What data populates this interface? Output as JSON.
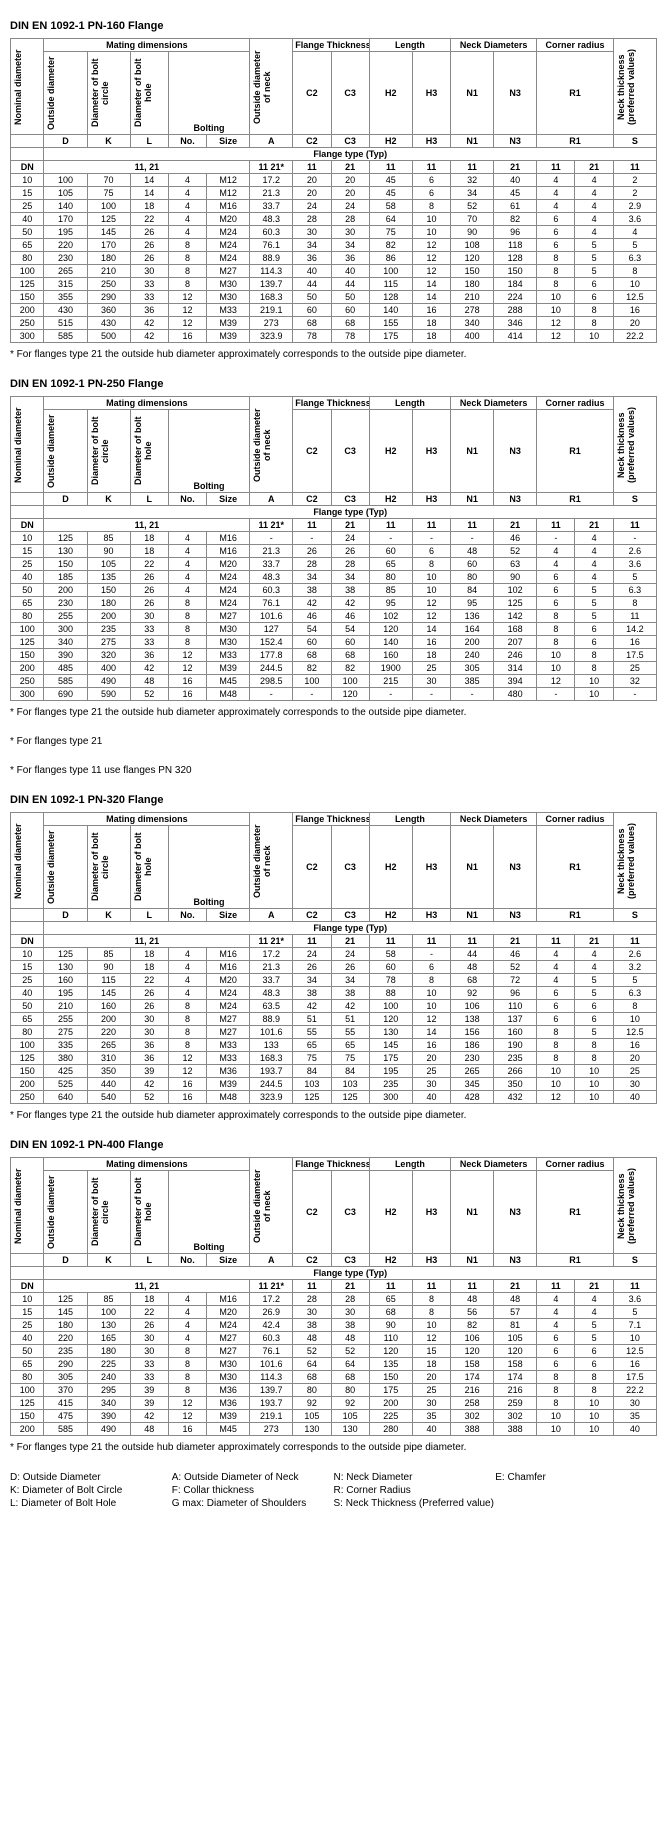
{
  "tables": [
    {
      "title": "DIN EN 1092-1 PN-160 Flange",
      "footnotes": [
        "* For flanges type 21 the outside hub diameter approximately corresponds to the outside pipe diameter."
      ],
      "rows": [
        [
          "10",
          "100",
          "70",
          "14",
          "4",
          "M12",
          "17.2",
          "20",
          "20",
          "45",
          "6",
          "32",
          "40",
          "4",
          "4",
          "2"
        ],
        [
          "15",
          "105",
          "75",
          "14",
          "4",
          "M12",
          "21.3",
          "20",
          "20",
          "45",
          "6",
          "34",
          "45",
          "4",
          "4",
          "2"
        ],
        [
          "25",
          "140",
          "100",
          "18",
          "4",
          "M16",
          "33.7",
          "24",
          "24",
          "58",
          "8",
          "52",
          "61",
          "4",
          "4",
          "2.9"
        ],
        [
          "40",
          "170",
          "125",
          "22",
          "4",
          "M20",
          "48.3",
          "28",
          "28",
          "64",
          "10",
          "70",
          "82",
          "6",
          "4",
          "3.6"
        ],
        [
          "50",
          "195",
          "145",
          "26",
          "4",
          "M24",
          "60.3",
          "30",
          "30",
          "75",
          "10",
          "90",
          "96",
          "6",
          "4",
          "4"
        ],
        [
          "65",
          "220",
          "170",
          "26",
          "8",
          "M24",
          "76.1",
          "34",
          "34",
          "82",
          "12",
          "108",
          "118",
          "6",
          "5",
          "5"
        ],
        [
          "80",
          "230",
          "180",
          "26",
          "8",
          "M24",
          "88.9",
          "36",
          "36",
          "86",
          "12",
          "120",
          "128",
          "8",
          "5",
          "6.3"
        ],
        [
          "100",
          "265",
          "210",
          "30",
          "8",
          "M27",
          "114.3",
          "40",
          "40",
          "100",
          "12",
          "150",
          "150",
          "8",
          "5",
          "8"
        ],
        [
          "125",
          "315",
          "250",
          "33",
          "8",
          "M30",
          "139.7",
          "44",
          "44",
          "115",
          "14",
          "180",
          "184",
          "8",
          "6",
          "10"
        ],
        [
          "150",
          "355",
          "290",
          "33",
          "12",
          "M30",
          "168.3",
          "50",
          "50",
          "128",
          "14",
          "210",
          "224",
          "10",
          "6",
          "12.5"
        ],
        [
          "200",
          "430",
          "360",
          "36",
          "12",
          "M33",
          "219.1",
          "60",
          "60",
          "140",
          "16",
          "278",
          "288",
          "10",
          "8",
          "16"
        ],
        [
          "250",
          "515",
          "430",
          "42",
          "12",
          "M39",
          "273",
          "68",
          "68",
          "155",
          "18",
          "340",
          "346",
          "12",
          "8",
          "20"
        ],
        [
          "300",
          "585",
          "500",
          "42",
          "16",
          "M39",
          "323.9",
          "78",
          "78",
          "175",
          "18",
          "400",
          "414",
          "12",
          "10",
          "22.2"
        ]
      ]
    },
    {
      "title": "DIN EN 1092-1 PN-250 Flange",
      "footnotes": [
        "* For flanges type 21 the outside hub diameter approximately corresponds to the outside pipe diameter.",
        "* For flanges type 21",
        "* For flanges type 11 use flanges PN 320"
      ],
      "rows": [
        [
          "10",
          "125",
          "85",
          "18",
          "4",
          "M16",
          "-",
          "-",
          "24",
          "-",
          "-",
          "-",
          "46",
          "-",
          "4",
          "-"
        ],
        [
          "15",
          "130",
          "90",
          "18",
          "4",
          "M16",
          "21.3",
          "26",
          "26",
          "60",
          "6",
          "48",
          "52",
          "4",
          "4",
          "2.6"
        ],
        [
          "25",
          "150",
          "105",
          "22",
          "4",
          "M20",
          "33.7",
          "28",
          "28",
          "65",
          "8",
          "60",
          "63",
          "4",
          "4",
          "3.6"
        ],
        [
          "40",
          "185",
          "135",
          "26",
          "4",
          "M24",
          "48.3",
          "34",
          "34",
          "80",
          "10",
          "80",
          "90",
          "6",
          "4",
          "5"
        ],
        [
          "50",
          "200",
          "150",
          "26",
          "4",
          "M24",
          "60.3",
          "38",
          "38",
          "85",
          "10",
          "84",
          "102",
          "6",
          "5",
          "6.3"
        ],
        [
          "65",
          "230",
          "180",
          "26",
          "8",
          "M24",
          "76.1",
          "42",
          "42",
          "95",
          "12",
          "95",
          "125",
          "6",
          "5",
          "8"
        ],
        [
          "80",
          "255",
          "200",
          "30",
          "8",
          "M27",
          "101.6",
          "46",
          "46",
          "102",
          "12",
          "136",
          "142",
          "8",
          "5",
          "11"
        ],
        [
          "100",
          "300",
          "235",
          "33",
          "8",
          "M30",
          "127",
          "54",
          "54",
          "120",
          "14",
          "164",
          "168",
          "8",
          "6",
          "14.2"
        ],
        [
          "125",
          "340",
          "275",
          "33",
          "8",
          "M30",
          "152.4",
          "60",
          "60",
          "140",
          "16",
          "200",
          "207",
          "8",
          "6",
          "16"
        ],
        [
          "150",
          "390",
          "320",
          "36",
          "12",
          "M33",
          "177.8",
          "68",
          "68",
          "160",
          "18",
          "240",
          "246",
          "10",
          "8",
          "17.5"
        ],
        [
          "200",
          "485",
          "400",
          "42",
          "12",
          "M39",
          "244.5",
          "82",
          "82",
          "1900",
          "25",
          "305",
          "314",
          "10",
          "8",
          "25"
        ],
        [
          "250",
          "585",
          "490",
          "48",
          "16",
          "M45",
          "298.5",
          "100",
          "100",
          "215",
          "30",
          "385",
          "394",
          "12",
          "10",
          "32"
        ],
        [
          "300",
          "690",
          "590",
          "52",
          "16",
          "M48",
          "-",
          "-",
          "120",
          "-",
          "-",
          "-",
          "480",
          "-",
          "10",
          "-"
        ]
      ]
    },
    {
      "title": "DIN EN 1092-1 PN-320 Flange",
      "footnotes": [
        "* For flanges type 21 the outside hub diameter approximately corresponds to the outside pipe diameter."
      ],
      "rows": [
        [
          "10",
          "125",
          "85",
          "18",
          "4",
          "M16",
          "17.2",
          "24",
          "24",
          "58",
          "-",
          "44",
          "46",
          "4",
          "4",
          "2.6"
        ],
        [
          "15",
          "130",
          "90",
          "18",
          "4",
          "M16",
          "21.3",
          "26",
          "26",
          "60",
          "6",
          "48",
          "52",
          "4",
          "4",
          "3.2"
        ],
        [
          "25",
          "160",
          "115",
          "22",
          "4",
          "M20",
          "33.7",
          "34",
          "34",
          "78",
          "8",
          "68",
          "72",
          "4",
          "5",
          "5"
        ],
        [
          "40",
          "195",
          "145",
          "26",
          "4",
          "M24",
          "48.3",
          "38",
          "38",
          "88",
          "10",
          "92",
          "96",
          "6",
          "5",
          "6.3"
        ],
        [
          "50",
          "210",
          "160",
          "26",
          "8",
          "M24",
          "63.5",
          "42",
          "42",
          "100",
          "10",
          "106",
          "110",
          "6",
          "6",
          "8"
        ],
        [
          "65",
          "255",
          "200",
          "30",
          "8",
          "M27",
          "88.9",
          "51",
          "51",
          "120",
          "12",
          "138",
          "137",
          "6",
          "6",
          "10"
        ],
        [
          "80",
          "275",
          "220",
          "30",
          "8",
          "M27",
          "101.6",
          "55",
          "55",
          "130",
          "14",
          "156",
          "160",
          "8",
          "5",
          "12.5"
        ],
        [
          "100",
          "335",
          "265",
          "36",
          "8",
          "M33",
          "133",
          "65",
          "65",
          "145",
          "16",
          "186",
          "190",
          "8",
          "8",
          "16"
        ],
        [
          "125",
          "380",
          "310",
          "36",
          "12",
          "M33",
          "168.3",
          "75",
          "75",
          "175",
          "20",
          "230",
          "235",
          "8",
          "8",
          "20"
        ],
        [
          "150",
          "425",
          "350",
          "39",
          "12",
          "M36",
          "193.7",
          "84",
          "84",
          "195",
          "25",
          "265",
          "266",
          "10",
          "10",
          "25"
        ],
        [
          "200",
          "525",
          "440",
          "42",
          "16",
          "M39",
          "244.5",
          "103",
          "103",
          "235",
          "30",
          "345",
          "350",
          "10",
          "10",
          "30"
        ],
        [
          "250",
          "640",
          "540",
          "52",
          "16",
          "M48",
          "323.9",
          "125",
          "125",
          "300",
          "40",
          "428",
          "432",
          "12",
          "10",
          "40"
        ]
      ]
    },
    {
      "title": "DIN EN 1092-1 PN-400 Flange",
      "footnotes": [
        "* For flanges type 21 the outside hub diameter approximately corresponds to the outside pipe diameter."
      ],
      "rows": [
        [
          "10",
          "125",
          "85",
          "18",
          "4",
          "M16",
          "17.2",
          "28",
          "28",
          "65",
          "8",
          "48",
          "48",
          "4",
          "4",
          "3.6"
        ],
        [
          "15",
          "145",
          "100",
          "22",
          "4",
          "M20",
          "26.9",
          "30",
          "30",
          "68",
          "8",
          "56",
          "57",
          "4",
          "4",
          "5"
        ],
        [
          "25",
          "180",
          "130",
          "26",
          "4",
          "M24",
          "42.4",
          "38",
          "38",
          "90",
          "10",
          "82",
          "81",
          "4",
          "5",
          "7.1"
        ],
        [
          "40",
          "220",
          "165",
          "30",
          "4",
          "M27",
          "60.3",
          "48",
          "48",
          "110",
          "12",
          "106",
          "105",
          "6",
          "5",
          "10"
        ],
        [
          "50",
          "235",
          "180",
          "30",
          "8",
          "M27",
          "76.1",
          "52",
          "52",
          "120",
          "15",
          "120",
          "120",
          "6",
          "6",
          "12.5"
        ],
        [
          "65",
          "290",
          "225",
          "33",
          "8",
          "M30",
          "101.6",
          "64",
          "64",
          "135",
          "18",
          "158",
          "158",
          "6",
          "6",
          "16"
        ],
        [
          "80",
          "305",
          "240",
          "33",
          "8",
          "M30",
          "114.3",
          "68",
          "68",
          "150",
          "20",
          "174",
          "174",
          "8",
          "8",
          "17.5"
        ],
        [
          "100",
          "370",
          "295",
          "39",
          "8",
          "M36",
          "139.7",
          "80",
          "80",
          "175",
          "25",
          "216",
          "216",
          "8",
          "8",
          "22.2"
        ],
        [
          "125",
          "415",
          "340",
          "39",
          "12",
          "M36",
          "193.7",
          "92",
          "92",
          "200",
          "30",
          "258",
          "259",
          "8",
          "10",
          "30"
        ],
        [
          "150",
          "475",
          "390",
          "42",
          "12",
          "M39",
          "219.1",
          "105",
          "105",
          "225",
          "35",
          "302",
          "302",
          "10",
          "10",
          "35"
        ],
        [
          "200",
          "585",
          "490",
          "48",
          "16",
          "M45",
          "273",
          "130",
          "130",
          "280",
          "40",
          "388",
          "388",
          "10",
          "10",
          "40"
        ]
      ]
    }
  ],
  "headers": {
    "mating": "Mating dimensions",
    "nominal": "Nominal diameter",
    "od": "Outside diameter",
    "boltcircle": "Diameter of bolt circle",
    "bolthole": "Diameter of bolt hole",
    "bolting": "Bolting",
    "odneck": "Outside diameter of neck",
    "flangethick": "Flange Thickness",
    "length": "Length",
    "neckdia": "Neck Diameters",
    "cornerrad": "Corner radius",
    "neckthick": "Neck thickness (preferred values)",
    "D": "D",
    "K": "K",
    "L": "L",
    "No": "No.",
    "Size": "Size",
    "A": "A",
    "C2": "C2",
    "C3": "C3",
    "H2": "H2",
    "H3": "H3",
    "N1": "N1",
    "N3": "N3",
    "R1": "R1",
    "S": "S",
    "flangetype": "Flange type (Typ)",
    "typ1121": "11, 21",
    "t11_21": "11 21*",
    "t11": "11",
    "t21": "21",
    "DN": "DN"
  },
  "legend": [
    [
      "D: Outside Diameter",
      "A: Outside Diameter of Neck",
      "N: Neck Diameter",
      "E: Chamfer"
    ],
    [
      "K: Diameter of Bolt Circle",
      "F: Collar thickness",
      "R: Corner Radius",
      ""
    ],
    [
      "L: Diameter of Bolt Hole",
      "G max: Diameter of Shoulders",
      "S: Neck Thickness (Preferred value)",
      ""
    ]
  ]
}
